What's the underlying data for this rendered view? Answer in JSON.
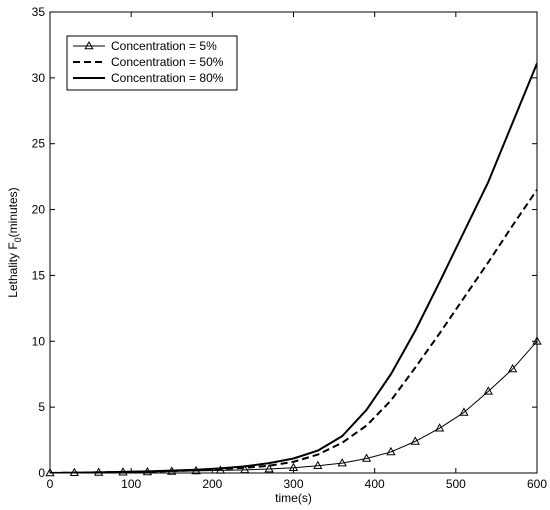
{
  "chart_data": {
    "type": "line",
    "xlabel": "time(s)",
    "ylabel": "Lethality F",
    "ylabel_sub": "0",
    "ylabel_suffix": "(minutes)",
    "xlim": [
      0,
      600
    ],
    "ylim": [
      0,
      35
    ],
    "xticks": [
      0,
      100,
      200,
      300,
      400,
      500,
      600
    ],
    "yticks": [
      0,
      5,
      10,
      15,
      20,
      25,
      30,
      35
    ],
    "grid": false,
    "legend_position": "top-left",
    "series": [
      {
        "name": "Concentration = 5%",
        "style": "solid-triangle",
        "color": "#000000",
        "x": [
          0,
          30,
          60,
          90,
          120,
          150,
          180,
          210,
          240,
          270,
          300,
          330,
          360,
          390,
          420,
          450,
          480,
          510,
          540,
          570,
          600
        ],
        "y": [
          0.0,
          0.02,
          0.04,
          0.06,
          0.08,
          0.12,
          0.16,
          0.2,
          0.24,
          0.3,
          0.4,
          0.55,
          0.75,
          1.1,
          1.6,
          2.4,
          3.4,
          4.6,
          6.2,
          7.9,
          10.0
        ],
        "markers": true
      },
      {
        "name": "Concentration = 50%",
        "style": "dashed",
        "color": "#000000",
        "x": [
          0,
          60,
          120,
          180,
          210,
          240,
          270,
          300,
          330,
          360,
          390,
          420,
          450,
          480,
          510,
          540,
          570,
          600
        ],
        "y": [
          0.0,
          0.05,
          0.1,
          0.2,
          0.3,
          0.4,
          0.55,
          0.85,
          1.4,
          2.3,
          3.6,
          5.5,
          8.0,
          10.6,
          13.3,
          16.0,
          18.8,
          21.5
        ],
        "markers": false
      },
      {
        "name": "Concentration = 80%",
        "style": "solid",
        "color": "#000000",
        "x": [
          0,
          60,
          120,
          180,
          210,
          240,
          270,
          300,
          330,
          360,
          390,
          420,
          450,
          480,
          510,
          540,
          570,
          600
        ],
        "y": [
          0.0,
          0.05,
          0.12,
          0.25,
          0.35,
          0.5,
          0.75,
          1.1,
          1.7,
          2.8,
          4.8,
          7.5,
          10.8,
          14.5,
          18.3,
          22.1,
          26.6,
          31.1
        ],
        "markers": false
      }
    ]
  }
}
